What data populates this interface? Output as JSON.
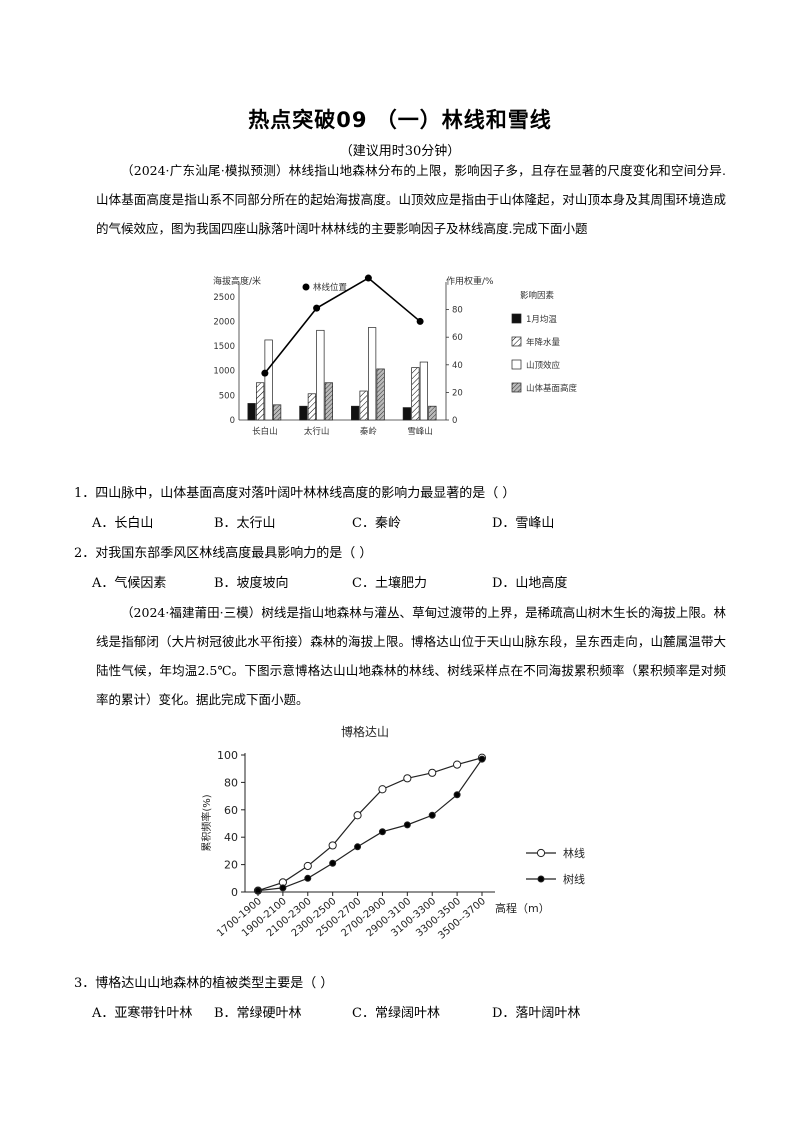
{
  "title": "热点突破09 （一）林线和雪线",
  "subtitle": "（建议用时30分钟）",
  "passage1": "（2024·广东汕尾·模拟预测）林线指山地森林分布的上限，影响因子多，且存在显著的尺度变化和空间分异.山体基面高度是指山系不同部分所在的起始海拔高度。山顶效应是指由于山体隆起，对山顶本身及其周围环境造成的气候效应，图为我国四座山脉落叶阔叶林林线的主要影响因子及林线高度.完成下面小题",
  "chart1": {
    "left_axis_title": "海拔高度/米",
    "right_axis_title": "作用权重/%",
    "line_legend": "林线位置",
    "factor_legend_title": "影响因素",
    "factor_legend": [
      "1月均温",
      "年降水量",
      "山顶效应",
      "山体基面高度"
    ],
    "left_ticks": [
      "0",
      "500",
      "1000",
      "1500",
      "2000",
      "2500"
    ],
    "right_ticks": [
      "0",
      "20",
      "40",
      "60",
      "80"
    ]
  },
  "chart1_data": {
    "type": "bar",
    "categories": [
      "长白山",
      "太行山",
      "秦岭",
      "雪峰山"
    ],
    "ylim_left": [
      0,
      2800
    ],
    "ylim_right": [
      0,
      100
    ],
    "series": [
      {
        "name": "1月均温",
        "axis": "right",
        "values": [
          12,
          10,
          10,
          9
        ]
      },
      {
        "name": "年降水量",
        "axis": "right",
        "values": [
          27,
          19,
          21,
          38
        ]
      },
      {
        "name": "山顶效应",
        "axis": "right",
        "values": [
          58,
          65,
          67,
          42
        ]
      },
      {
        "name": "山体基面高度",
        "axis": "right",
        "values": [
          11,
          27,
          37,
          10
        ]
      },
      {
        "name": "林线位置",
        "axis": "left",
        "type": "line",
        "values": [
          950,
          2270,
          2880,
          2000
        ]
      }
    ]
  },
  "q1": {
    "stem": "1．四山脉中，山体基面高度对落叶阔叶林林线高度的影响力最显著的是（    ）",
    "options": [
      "A．长白山",
      "B．太行山",
      "C．秦岭",
      "D．雪峰山"
    ]
  },
  "q2": {
    "stem": "2．对我国东部季风区林线高度最具影响力的是（    ）",
    "options": [
      "A．气候因素",
      "B．坡度坡向",
      "C．土壤肥力",
      "D．山地高度"
    ]
  },
  "passage2": "（2024·福建莆田·三模）树线是指山地森林与灌丛、草甸过渡带的上界，是稀疏高山树木生长的海拔上限。林线是指郁闭（大片树冠彼此水平衔接）森林的海拔上限。博格达山位于天山山脉东段，呈东西走向，山麓属温带大陆性气候，年均温2.5℃。下图示意博格达山山地森林的林线、树线采样点在不同海拔累积频率（累积频率是对频率的累计）变化。据此完成下面小题。",
  "chart2": {
    "title": "博格达山",
    "ylabel": "累积频率(%)",
    "xlabel": "高程（m）",
    "y_ticks": [
      "0",
      "20",
      "40",
      "60",
      "80",
      "100"
    ],
    "legend": [
      "林线",
      "树线"
    ]
  },
  "chart2_data": {
    "type": "line",
    "categories": [
      "1700-1900",
      "1900-2100",
      "2100-2300",
      "2300-2500",
      "2500-2700",
      "2700-2900",
      "2900-3100",
      "3100-3300",
      "3300-3500",
      "3500--3700"
    ],
    "ylim": [
      0,
      100
    ],
    "series": [
      {
        "name": "林线",
        "values": [
          1,
          7,
          19,
          34,
          56,
          75,
          83,
          87,
          93,
          98
        ]
      },
      {
        "name": "树线",
        "values": [
          1,
          3,
          10,
          21,
          33,
          44,
          49,
          56,
          71,
          97
        ]
      }
    ]
  },
  "q3": {
    "stem": "3．博格达山山地森林的植被类型主要是（    ）",
    "options": [
      "A．亚寒带针叶林",
      "B．常绿硬叶林",
      "C．常绿阔叶林",
      "D．落叶阔叶林"
    ]
  }
}
